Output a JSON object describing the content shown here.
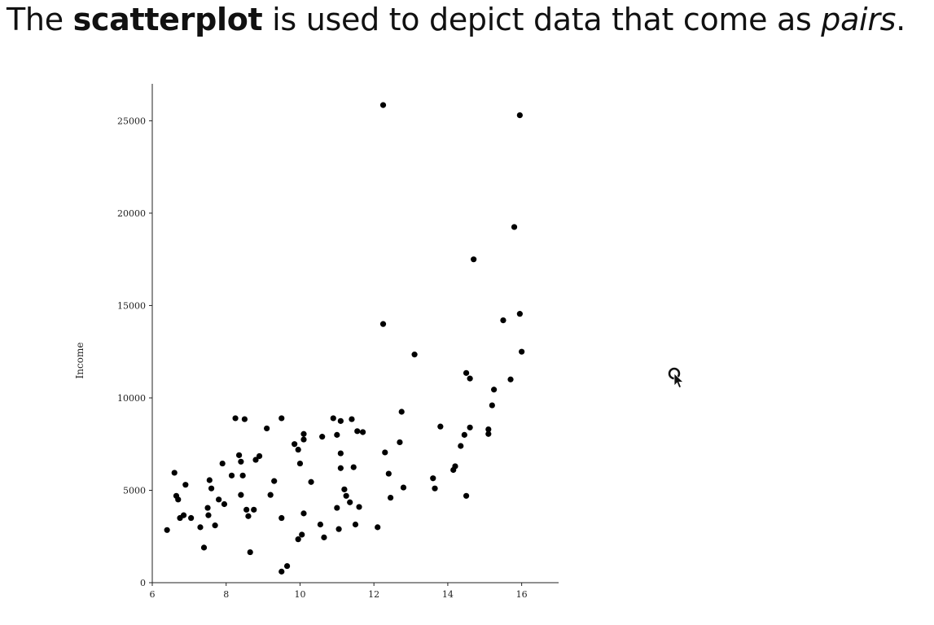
{
  "heading": {
    "part1": "The ",
    "bold": "scatterplot",
    "part2": " is used to depict data that come as ",
    "italic": "pairs",
    "part3": "."
  },
  "cursor_icon": "mouse-pointer-icon",
  "chart_data": {
    "type": "scatter",
    "ylabel": "Income",
    "xlim": [
      6,
      17
    ],
    "ylim": [
      0,
      27000
    ],
    "x_ticks": [
      6,
      8,
      10,
      12,
      14,
      16
    ],
    "y_ticks": [
      0,
      5000,
      10000,
      15000,
      20000,
      25000
    ],
    "grid": false,
    "points": [
      {
        "x": 6.4,
        "y": 2850
      },
      {
        "x": 6.6,
        "y": 5950
      },
      {
        "x": 6.65,
        "y": 4700
      },
      {
        "x": 6.7,
        "y": 4500
      },
      {
        "x": 6.75,
        "y": 3500
      },
      {
        "x": 6.85,
        "y": 3650
      },
      {
        "x": 6.9,
        "y": 5300
      },
      {
        "x": 7.05,
        "y": 3500
      },
      {
        "x": 7.3,
        "y": 3000
      },
      {
        "x": 7.4,
        "y": 1900
      },
      {
        "x": 7.5,
        "y": 4050
      },
      {
        "x": 7.52,
        "y": 3650
      },
      {
        "x": 7.55,
        "y": 5550
      },
      {
        "x": 7.6,
        "y": 5100
      },
      {
        "x": 7.7,
        "y": 3100
      },
      {
        "x": 7.8,
        "y": 4500
      },
      {
        "x": 7.9,
        "y": 6450
      },
      {
        "x": 7.95,
        "y": 4250
      },
      {
        "x": 8.15,
        "y": 5800
      },
      {
        "x": 8.25,
        "y": 8900
      },
      {
        "x": 8.35,
        "y": 6900
      },
      {
        "x": 8.4,
        "y": 6550
      },
      {
        "x": 8.45,
        "y": 5800
      },
      {
        "x": 8.4,
        "y": 4750
      },
      {
        "x": 8.5,
        "y": 8850
      },
      {
        "x": 8.55,
        "y": 3950
      },
      {
        "x": 8.6,
        "y": 3600
      },
      {
        "x": 8.65,
        "y": 1650
      },
      {
        "x": 8.75,
        "y": 3950
      },
      {
        "x": 8.8,
        "y": 6650
      },
      {
        "x": 8.9,
        "y": 6850
      },
      {
        "x": 9.1,
        "y": 8350
      },
      {
        "x": 9.2,
        "y": 4750
      },
      {
        "x": 9.3,
        "y": 5500
      },
      {
        "x": 9.5,
        "y": 8900
      },
      {
        "x": 9.5,
        "y": 3500
      },
      {
        "x": 9.5,
        "y": 600
      },
      {
        "x": 9.65,
        "y": 900
      },
      {
        "x": 9.85,
        "y": 7500
      },
      {
        "x": 9.95,
        "y": 7200
      },
      {
        "x": 10.0,
        "y": 6450
      },
      {
        "x": 9.95,
        "y": 2350
      },
      {
        "x": 10.05,
        "y": 2600
      },
      {
        "x": 10.1,
        "y": 7750
      },
      {
        "x": 10.1,
        "y": 8050
      },
      {
        "x": 10.1,
        "y": 3750
      },
      {
        "x": 10.3,
        "y": 5450
      },
      {
        "x": 10.55,
        "y": 3150
      },
      {
        "x": 10.6,
        "y": 7900
      },
      {
        "x": 10.65,
        "y": 2450
      },
      {
        "x": 10.9,
        "y": 8900
      },
      {
        "x": 11.0,
        "y": 8000
      },
      {
        "x": 11.0,
        "y": 4050
      },
      {
        "x": 11.05,
        "y": 2900
      },
      {
        "x": 11.1,
        "y": 7000
      },
      {
        "x": 11.1,
        "y": 6200
      },
      {
        "x": 11.1,
        "y": 8750
      },
      {
        "x": 11.2,
        "y": 5050
      },
      {
        "x": 11.25,
        "y": 4700
      },
      {
        "x": 11.35,
        "y": 4350
      },
      {
        "x": 11.4,
        "y": 8850
      },
      {
        "x": 11.45,
        "y": 6250
      },
      {
        "x": 11.5,
        "y": 3150
      },
      {
        "x": 11.55,
        "y": 8200
      },
      {
        "x": 11.6,
        "y": 4100
      },
      {
        "x": 11.7,
        "y": 8150
      },
      {
        "x": 12.1,
        "y": 3000
      },
      {
        "x": 12.25,
        "y": 25850
      },
      {
        "x": 12.25,
        "y": 14000
      },
      {
        "x": 12.3,
        "y": 7050
      },
      {
        "x": 12.4,
        "y": 5900
      },
      {
        "x": 12.45,
        "y": 4600
      },
      {
        "x": 12.7,
        "y": 7600
      },
      {
        "x": 12.75,
        "y": 9250
      },
      {
        "x": 12.8,
        "y": 5150
      },
      {
        "x": 13.1,
        "y": 12350
      },
      {
        "x": 13.6,
        "y": 5650
      },
      {
        "x": 13.65,
        "y": 5100
      },
      {
        "x": 13.8,
        "y": 8450
      },
      {
        "x": 14.15,
        "y": 6100
      },
      {
        "x": 14.2,
        "y": 6300
      },
      {
        "x": 14.35,
        "y": 7400
      },
      {
        "x": 14.45,
        "y": 8000
      },
      {
        "x": 14.5,
        "y": 4700
      },
      {
        "x": 14.5,
        "y": 11350
      },
      {
        "x": 14.6,
        "y": 11050
      },
      {
        "x": 14.6,
        "y": 8400
      },
      {
        "x": 14.7,
        "y": 17500
      },
      {
        "x": 15.1,
        "y": 8050
      },
      {
        "x": 15.1,
        "y": 8300
      },
      {
        "x": 15.2,
        "y": 9600
      },
      {
        "x": 15.25,
        "y": 10450
      },
      {
        "x": 15.5,
        "y": 14200
      },
      {
        "x": 15.7,
        "y": 11000
      },
      {
        "x": 15.8,
        "y": 19250
      },
      {
        "x": 15.95,
        "y": 25300
      },
      {
        "x": 15.95,
        "y": 14550
      },
      {
        "x": 16.0,
        "y": 12500
      }
    ]
  }
}
